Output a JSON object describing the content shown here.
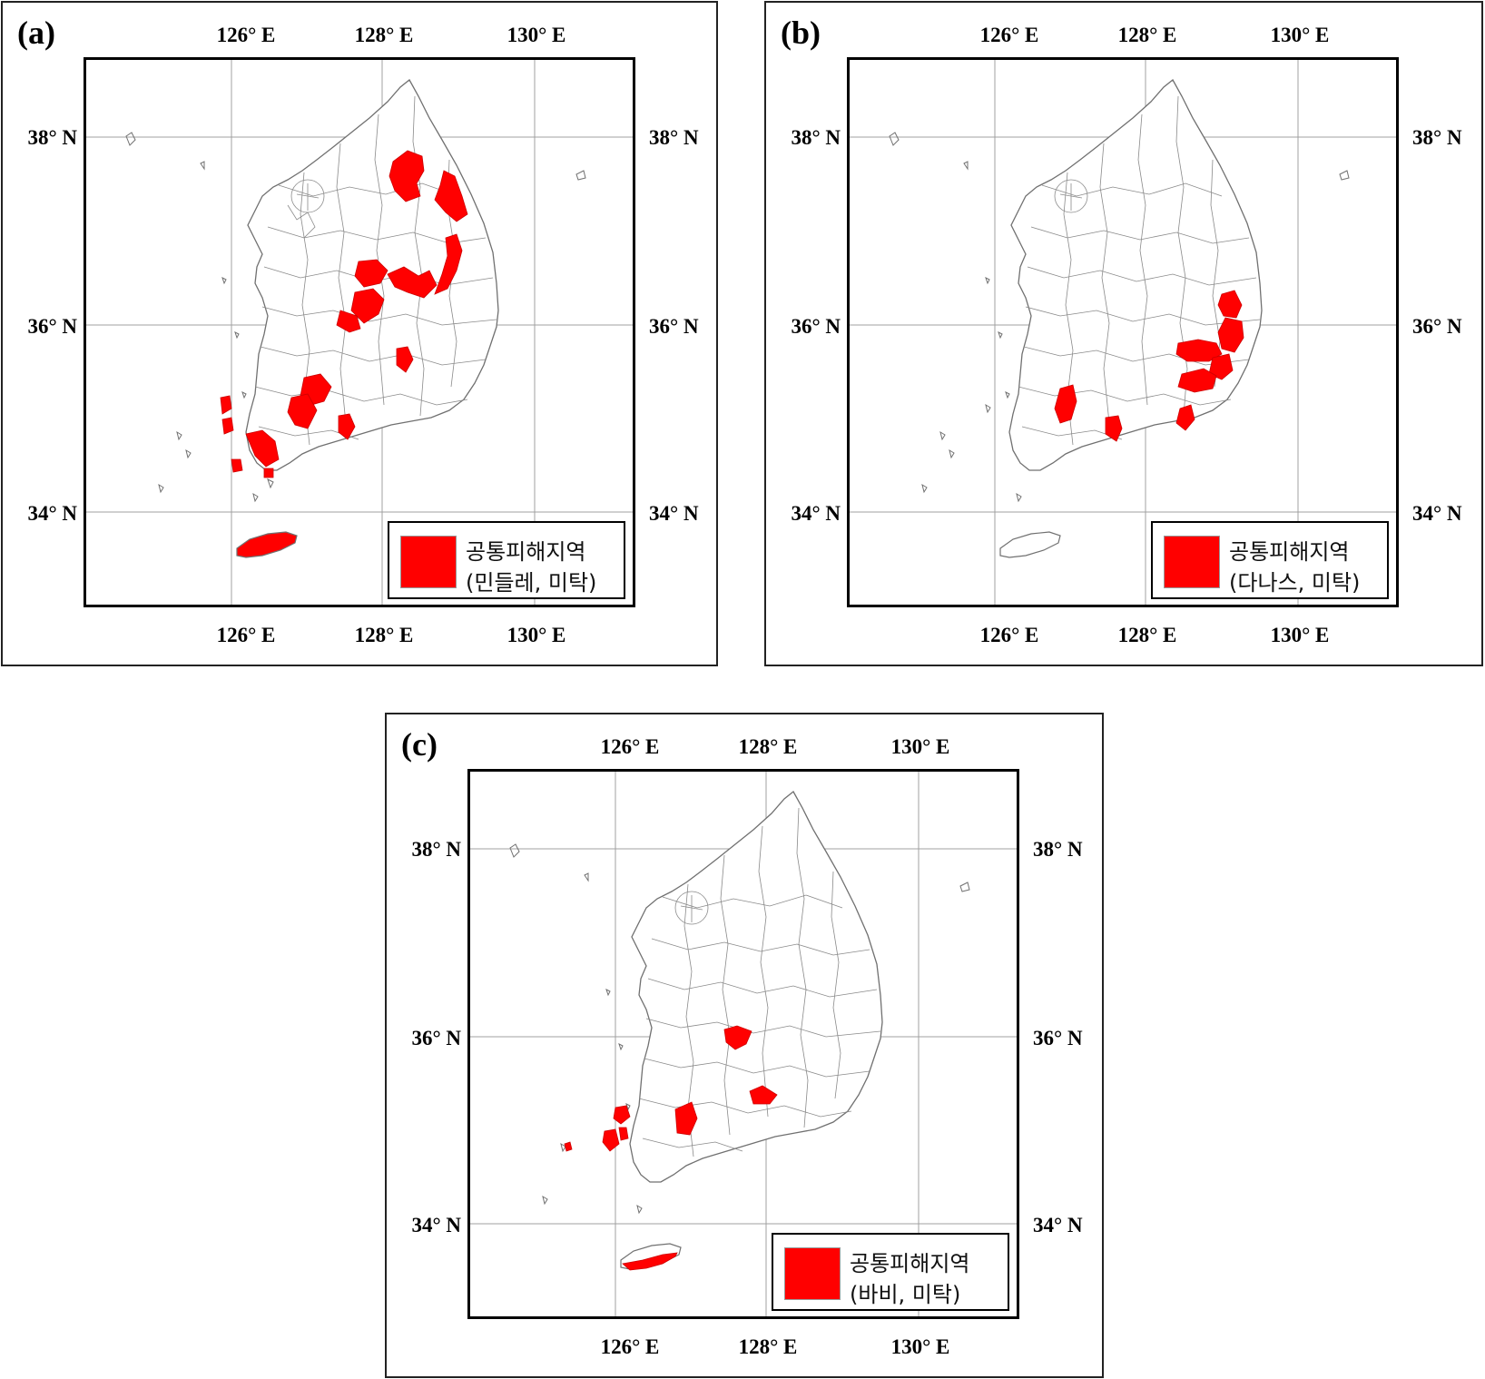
{
  "panels": [
    {
      "id": "a",
      "label": "(a)",
      "lon_labels": [
        "126° E",
        "128° E",
        "130° E"
      ],
      "lat_labels": [
        "38° N",
        "36° N",
        "34° N"
      ],
      "legend_title": "공통피해지역",
      "legend_sub": "(민들레, 미탁)",
      "highlighted_regions": [
        "north-east-cluster",
        "central-cluster",
        "south-west-cluster",
        "south-coast",
        "jeju"
      ]
    },
    {
      "id": "b",
      "label": "(b)",
      "lon_labels": [
        "126° E",
        "128° E",
        "130° E"
      ],
      "lat_labels": [
        "38° N",
        "36° N",
        "34° N"
      ],
      "legend_title": "공통피해지역",
      "legend_sub": "(다나스, 미탁)",
      "highlighted_regions": [
        "south-east-coast",
        "south-central",
        "south-coast"
      ]
    },
    {
      "id": "c",
      "label": "(c)",
      "lon_labels": [
        "126° E",
        "128° E",
        "130° E"
      ],
      "lat_labels": [
        "38° N",
        "36° N",
        "34° N"
      ],
      "legend_title": "공통피해지역",
      "legend_sub": "(바비, 미탁)",
      "highlighted_regions": [
        "central",
        "south-central",
        "south-east",
        "south-west-islands",
        "jeju-south"
      ]
    }
  ],
  "colors": {
    "highlight": "#ff0000",
    "boundary": "#707070",
    "grid": "#a0a0a0",
    "frame": "#000000"
  }
}
